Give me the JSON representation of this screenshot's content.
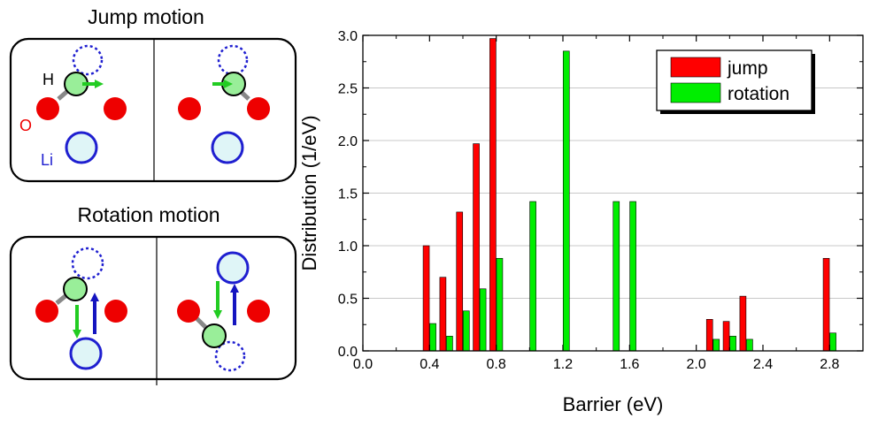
{
  "left_panels": {
    "jump": {
      "title": "Jump motion",
      "label_h": "H",
      "label_o": "O",
      "label_li": "Li"
    },
    "rotation": {
      "title": "Rotation motion"
    }
  },
  "colors": {
    "jump": "#ff0000",
    "rotation": "#00ee00",
    "oxygen": "#ee0000",
    "hydrogen": "#99ee99",
    "lithium_fill": "#dff5f7",
    "lithium_stroke": "#1f1fd0",
    "arrow_green": "#22cc22",
    "arrow_blue": "#1515c0",
    "label_o": "#ee0000",
    "label_li": "#1f1fd0"
  },
  "chart_data": {
    "type": "bar",
    "xlabel": "Barrier  (eV)",
    "ylabel": "Distribution  (1/eV)",
    "xlim": [
      0.0,
      3.0
    ],
    "ylim": [
      0.0,
      3.0
    ],
    "xticks": [
      "0.0",
      "0.4",
      "0.8",
      "1.2",
      "1.6",
      "2.0",
      "2.4",
      "2.8"
    ],
    "yticks": [
      "0.0",
      "0.5",
      "1.0",
      "1.5",
      "2.0",
      "2.5",
      "3.0"
    ],
    "grid": "horizontal",
    "legend_position": "top-right",
    "series": [
      {
        "name": "jump",
        "x": [
          0.38,
          0.48,
          0.58,
          0.68,
          0.78,
          2.08,
          2.18,
          2.28,
          2.78
        ],
        "values": [
          1.0,
          0.7,
          1.32,
          1.97,
          2.97,
          0.3,
          0.28,
          0.52,
          0.88
        ]
      },
      {
        "name": "rotation",
        "x": [
          0.42,
          0.52,
          0.62,
          0.72,
          0.82,
          1.02,
          1.22,
          1.52,
          1.62,
          2.12,
          2.22,
          2.32,
          2.82
        ],
        "values": [
          0.26,
          0.14,
          0.38,
          0.59,
          0.88,
          1.42,
          2.85,
          1.42,
          1.42,
          0.11,
          0.14,
          0.11,
          0.17
        ]
      }
    ]
  }
}
